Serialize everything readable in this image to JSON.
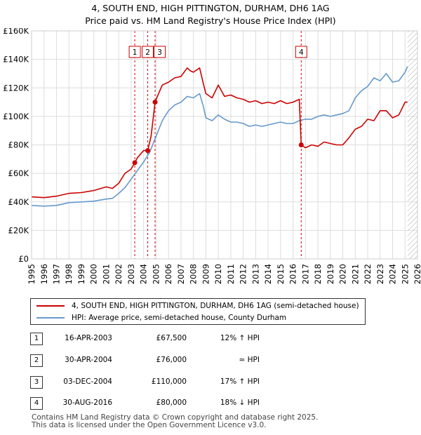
{
  "title": {
    "line1": "4, SOUTH END, HIGH PITTINGTON, DURHAM, DH6 1AG",
    "line2": "Price paid vs. HM Land Registry's House Price Index (HPI)"
  },
  "colors": {
    "property": "#cc0000",
    "hpi": "#6699cc",
    "grid": "#dddddd",
    "future_hatch": "#999999"
  },
  "chart_data": {
    "type": "line",
    "title": "Price paid vs. HM Land Registry's House Price Index (HPI)",
    "xlabel": "",
    "ylabel": "",
    "xlim": [
      1995,
      2026
    ],
    "ylim": [
      0,
      160000
    ],
    "grid": true,
    "x_ticks": [
      1995,
      1996,
      1997,
      1998,
      1999,
      2000,
      2001,
      2002,
      2003,
      2004,
      2005,
      2006,
      2007,
      2008,
      2009,
      2010,
      2011,
      2012,
      2013,
      2014,
      2015,
      2016,
      2017,
      2018,
      2019,
      2020,
      2021,
      2022,
      2023,
      2024,
      2025,
      2026
    ],
    "y_ticks": [
      0,
      20000,
      40000,
      60000,
      80000,
      100000,
      120000,
      140000,
      160000
    ],
    "y_tick_labels": [
      "£0",
      "£20K",
      "£40K",
      "£60K",
      "£80K",
      "£100K",
      "£120K",
      "£140K",
      "£160K"
    ],
    "forecast_from": 2025.2,
    "series": [
      {
        "name": "4, SOUTH END, HIGH PITTINGTON, DURHAM, DH6 1AG (semi-detached house)",
        "color": "#cc0000",
        "x": [
          1995.0,
          1996.0,
          1997.0,
          1998.0,
          1999.0,
          2000.0,
          2001.0,
          2001.5,
          2002.0,
          2002.5,
          2003.0,
          2003.29,
          2003.5,
          2003.8,
          2004.0,
          2004.33,
          2004.6,
          2004.92,
          2005.2,
          2005.5,
          2006.0,
          2006.5,
          2007.0,
          2007.5,
          2007.75,
          2008.0,
          2008.5,
          2008.8,
          2009.0,
          2009.5,
          2010.0,
          2010.5,
          2011.0,
          2011.5,
          2012.0,
          2012.5,
          2013.0,
          2013.5,
          2014.0,
          2014.5,
          2015.0,
          2015.5,
          2016.0,
          2016.5,
          2016.66,
          2017.0,
          2017.5,
          2018.0,
          2018.5,
          2019.0,
          2019.5,
          2020.0,
          2020.5,
          2021.0,
          2021.5,
          2022.0,
          2022.5,
          2023.0,
          2023.5,
          2024.0,
          2024.5,
          2025.0,
          2025.2
        ],
        "values": [
          43500,
          43000,
          44000,
          46000,
          46500,
          48000,
          50500,
          49500,
          53000,
          60000,
          63000,
          67500,
          71000,
          74000,
          76000,
          76000,
          86000,
          110000,
          116000,
          122000,
          124000,
          127000,
          128000,
          134000,
          132000,
          131000,
          134000,
          123000,
          116000,
          113000,
          122000,
          114000,
          115000,
          113000,
          112000,
          110000,
          111000,
          109000,
          110000,
          109000,
          111000,
          109000,
          110000,
          112000,
          80000,
          78000,
          80000,
          79000,
          82000,
          81000,
          80000,
          80000,
          85000,
          91000,
          93000,
          98000,
          97000,
          104000,
          104000,
          99000,
          101000,
          110000,
          110000
        ]
      },
      {
        "name": "HPI: Average price, semi-detached house, County Durham",
        "color": "#6699cc",
        "x": [
          1995.0,
          1996.0,
          1997.0,
          1998.0,
          1999.0,
          2000.0,
          2001.0,
          2001.5,
          2002.0,
          2002.5,
          2003.0,
          2003.5,
          2004.0,
          2004.5,
          2005.0,
          2005.5,
          2006.0,
          2006.5,
          2007.0,
          2007.5,
          2008.0,
          2008.5,
          2008.8,
          2009.0,
          2009.5,
          2010.0,
          2010.5,
          2011.0,
          2011.5,
          2012.0,
          2012.5,
          2013.0,
          2013.5,
          2014.0,
          2014.5,
          2015.0,
          2015.5,
          2016.0,
          2016.5,
          2017.0,
          2017.5,
          2018.0,
          2018.5,
          2019.0,
          2019.5,
          2020.0,
          2020.5,
          2021.0,
          2021.5,
          2022.0,
          2022.5,
          2023.0,
          2023.5,
          2024.0,
          2024.5,
          2025.0,
          2025.2
        ],
        "values": [
          37500,
          37000,
          37500,
          39500,
          40000,
          40500,
          42000,
          42500,
          46000,
          50000,
          56000,
          62000,
          68000,
          75000,
          86000,
          97000,
          104000,
          108000,
          110000,
          114000,
          113000,
          116000,
          107000,
          99000,
          97000,
          101000,
          98000,
          96000,
          96000,
          95000,
          93000,
          94000,
          93000,
          94000,
          95000,
          96000,
          95000,
          95000,
          97000,
          98000,
          98000,
          100000,
          101000,
          100000,
          101000,
          102000,
          104000,
          113000,
          118000,
          121000,
          127000,
          125000,
          130000,
          124000,
          125000,
          131000,
          135000
        ]
      }
    ],
    "sales": [
      {
        "label": "1",
        "x": 2003.29,
        "value": 67500
      },
      {
        "label": "2",
        "x": 2004.33,
        "value": 76000
      },
      {
        "label": "3",
        "x": 2004.92,
        "value": 110000
      },
      {
        "label": "4",
        "x": 2016.66,
        "value": 80000
      }
    ]
  },
  "legend": {
    "property_label": "4, SOUTH END, HIGH PITTINGTON, DURHAM, DH6 1AG (semi-detached house)",
    "hpi_label": "HPI: Average price, semi-detached house, County Durham"
  },
  "sales_table": [
    {
      "num": "1",
      "date": "16-APR-2003",
      "price": "£67,500",
      "hpi": "12% ↑ HPI"
    },
    {
      "num": "2",
      "date": "30-APR-2004",
      "price": "£76,000",
      "hpi": "≈ HPI"
    },
    {
      "num": "3",
      "date": "03-DEC-2004",
      "price": "£110,000",
      "hpi": "17% ↑ HPI"
    },
    {
      "num": "4",
      "date": "30-AUG-2016",
      "price": "£80,000",
      "hpi": "18% ↓ HPI"
    }
  ],
  "footer": {
    "line1": "Contains HM Land Registry data © Crown copyright and database right 2025.",
    "line2": "This data is licensed under the Open Government Licence v3.0."
  }
}
